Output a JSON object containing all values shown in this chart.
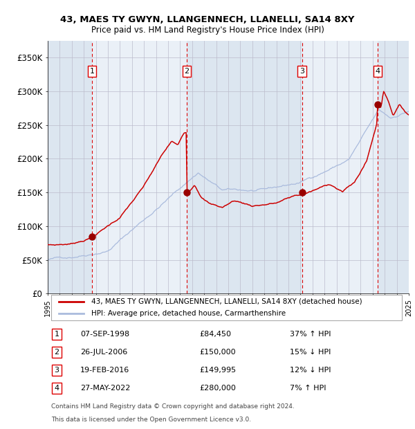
{
  "title": "43, MAES TY GWYN, LLANGENNECH, LLANELLI, SA14 8XY",
  "subtitle": "Price paid vs. HM Land Registry's House Price Index (HPI)",
  "x_start_year": 1995,
  "x_end_year": 2025,
  "ylim": [
    0,
    375000
  ],
  "yticks": [
    0,
    50000,
    100000,
    150000,
    200000,
    250000,
    300000,
    350000
  ],
  "ytick_labels": [
    "£0",
    "£50K",
    "£100K",
    "£150K",
    "£200K",
    "£250K",
    "£300K",
    "£350K"
  ],
  "property_color": "#cc0000",
  "hpi_color": "#aabbdd",
  "sale_marker_color": "#990000",
  "vline_color": "#dd0000",
  "grid_color": "#cccccc",
  "plot_bg_color": "#e8eef6",
  "fig_bg_color": "#ffffff",
  "legend_label_property": "43, MAES TY GWYN, LLANGENNECH, LLANELLI, SA14 8XY (detached house)",
  "legend_label_hpi": "HPI: Average price, detached house, Carmarthenshire",
  "sales": [
    {
      "num": 1,
      "date": "07-SEP-1998",
      "price": 84450,
      "pct": "37%",
      "dir": "↑",
      "year": 1998.67
    },
    {
      "num": 2,
      "date": "26-JUL-2006",
      "price": 150000,
      "pct": "15%",
      "dir": "↓",
      "year": 2006.56
    },
    {
      "num": 3,
      "date": "19-FEB-2016",
      "price": 149995,
      "pct": "12%",
      "dir": "↓",
      "year": 2016.13
    },
    {
      "num": 4,
      "date": "27-MAY-2022",
      "price": 280000,
      "pct": "7%",
      "dir": "↑",
      "year": 2022.41
    }
  ],
  "footer_line1": "Contains HM Land Registry data © Crown copyright and database right 2024.",
  "footer_line2": "This data is licensed under the Open Government Licence v3.0."
}
